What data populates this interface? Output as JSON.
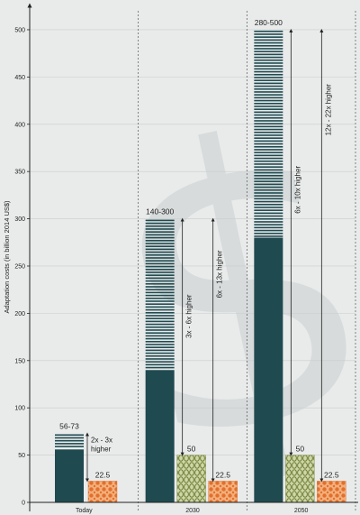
{
  "chart_data": {
    "type": "bar",
    "ylabel": "Adaptation costs (in billion 2014 US$)",
    "ylim": [
      0,
      520
    ],
    "yticks": [
      0,
      50,
      100,
      150,
      200,
      250,
      300,
      350,
      400,
      450,
      500
    ],
    "categories": [
      "Today",
      "2030",
      "2050"
    ],
    "series": [
      {
        "values": [
          56,
          140,
          280
        ],
        "color": "#1f4a50"
      },
      {
        "values": [
          73,
          300,
          500
        ],
        "color": "#1f4a50"
      },
      {
        "values": [
          null,
          50,
          50
        ],
        "color": "#9aa86a"
      },
      {
        "values": [
          22.5,
          22.5,
          22.5
        ],
        "color": "#e87d3e"
      }
    ],
    "value_labels": {
      "range": [
        "56-73",
        "140-300",
        "280-500"
      ],
      "mid": [
        "",
        "50",
        "50"
      ],
      "low": [
        "22.5",
        "22.5",
        "22.5"
      ]
    },
    "annotations": [
      {
        "group": 0,
        "from": 22.5,
        "to": 73,
        "text": "2x - 3x higher"
      },
      {
        "group": 1,
        "from": 50,
        "to": 300,
        "text": "3x - 6x higher"
      },
      {
        "group": 1,
        "from": 22.5,
        "to": 300,
        "text": "6x - 13x higher"
      },
      {
        "group": 2,
        "from": 50,
        "to": 500,
        "text": "6x - 10x higher"
      },
      {
        "group": 2,
        "from": 22.5,
        "to": 500,
        "text": "12x - 22x higher"
      }
    ],
    "watermark": "$",
    "grid": true
  }
}
